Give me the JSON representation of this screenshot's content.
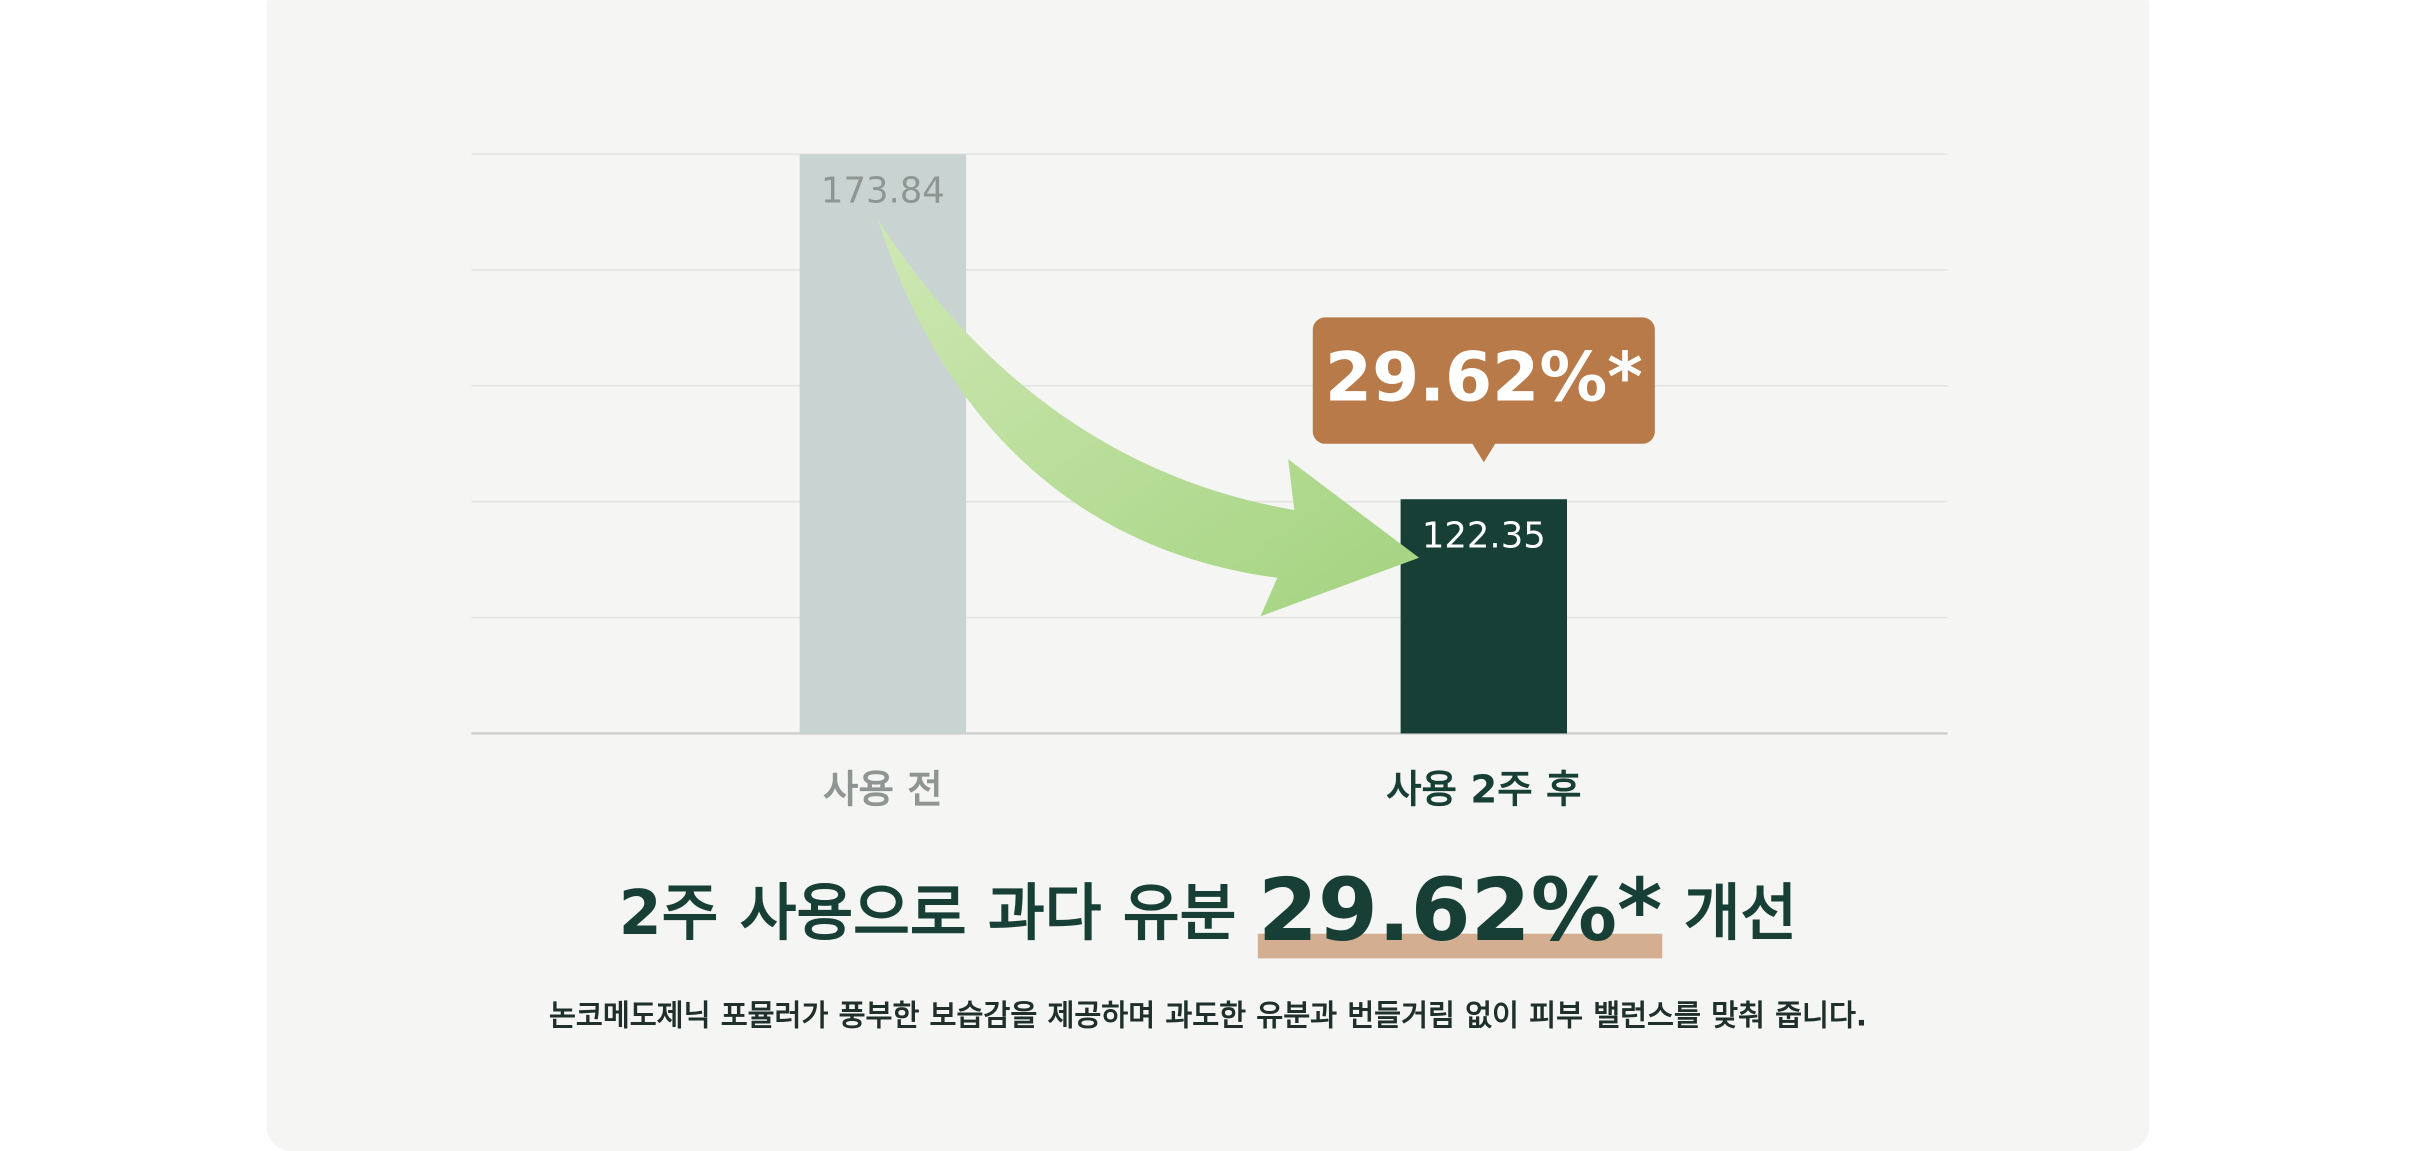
{
  "chart_data": {
    "type": "bar",
    "categories": [
      "사용 전",
      "사용 2주 후"
    ],
    "values": [
      173.84,
      122.35
    ],
    "colors": [
      "#c9d4d2",
      "#173f36"
    ],
    "value_label_colors": [
      "#8e9592",
      "#ffffff"
    ],
    "category_label_colors": [
      "#8e9592",
      "#173f36"
    ],
    "ylim": [
      87.41,
      173.84
    ],
    "grid": true,
    "callout": "29.62%*",
    "callout_color": "#b87a48",
    "title": {
      "before": "2주 사용으로 과다 유분",
      "highlight": "29.62%*",
      "after": "개선"
    },
    "subtitle": "논코메도제닉 포뮬러가 풍부한 보습감을 제공하며 과도한 유분과 번들거림 없이 피부 밸런스를 맞춰 줍니다."
  }
}
